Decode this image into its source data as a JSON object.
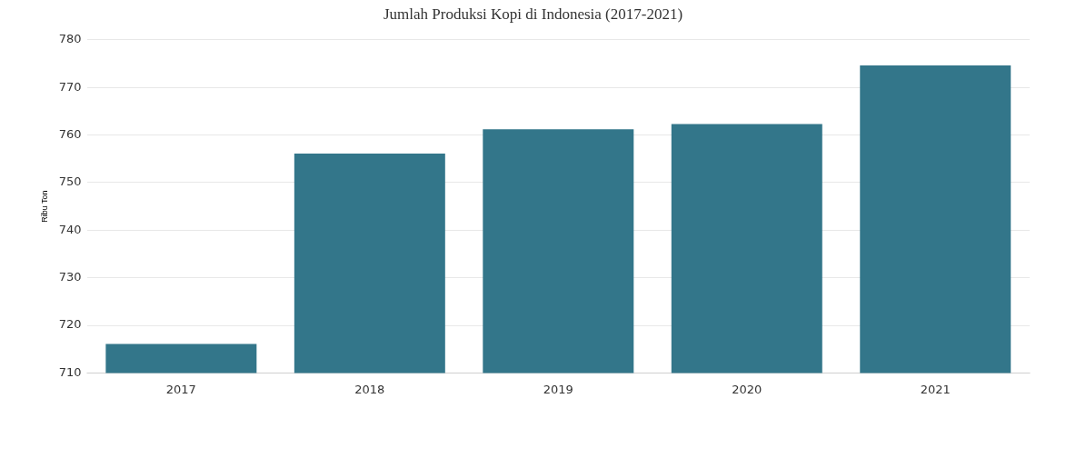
{
  "chart_data": {
    "type": "bar",
    "title": "Jumlah Produksi Kopi di Indonesia (2017-2021)",
    "ylabel": "Ribu Ton",
    "categories": [
      "2017",
      "2018",
      "2019",
      "2020",
      "2021"
    ],
    "values": [
      716.1,
      756.1,
      761.2,
      762.3,
      774.6
    ],
    "color": "#33768a",
    "ylim": [
      710,
      780
    ],
    "yticks": [
      710,
      720,
      730,
      740,
      750,
      760,
      770,
      780
    ],
    "grid": "y",
    "legend": false
  }
}
